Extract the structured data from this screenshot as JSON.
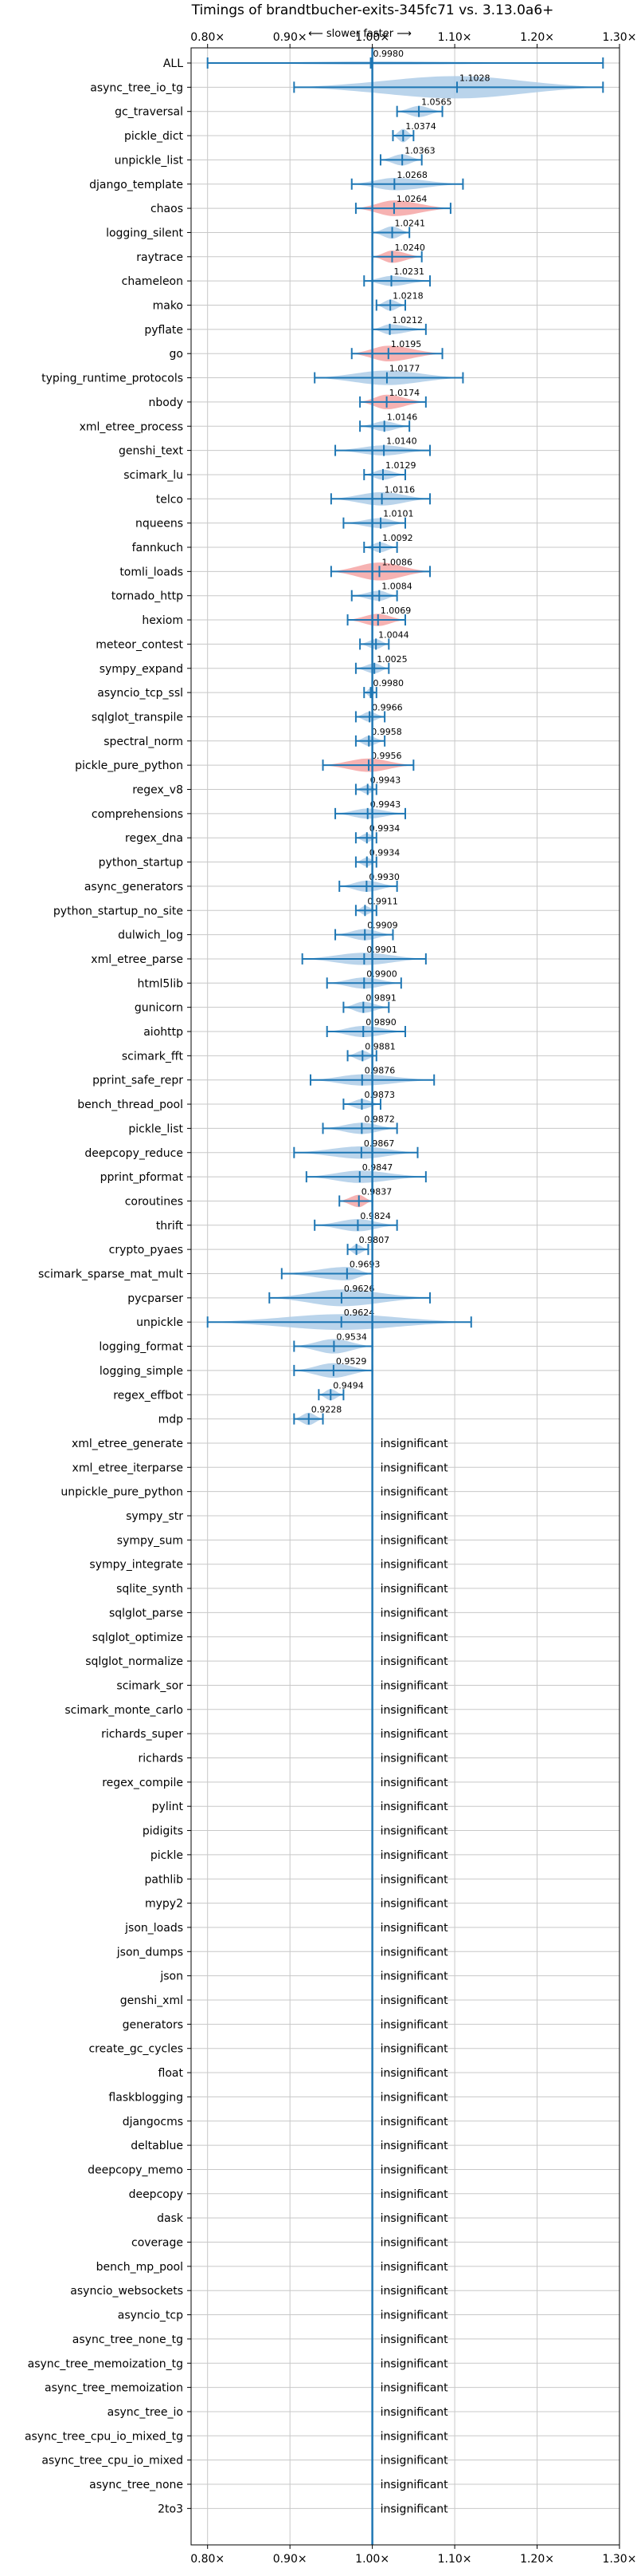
{
  "chart_data": {
    "type": "violin",
    "title": "Timings of brandtbucher-exits-345fc71 vs. 3.13.0a6+",
    "subtitle": "⟵ slower    faster ⟶",
    "xlim": [
      0.78,
      1.3
    ],
    "x_ticks": [
      0.8,
      0.9,
      1.0,
      1.1,
      1.2,
      1.3
    ],
    "x_tick_labels": [
      "0.80×",
      "0.90×",
      "1.00×",
      "1.10×",
      "1.20×",
      "1.30×"
    ],
    "reference_line": 1.0,
    "grid": true,
    "colors": {
      "faster": "#aecde8",
      "slower": "#f4a4a4",
      "line": "#1f77b4"
    },
    "insignificant_label": "insignificant",
    "benchmarks": [
      {
        "name": "ALL",
        "value": 0.998,
        "label": "0.9980",
        "min": 0.8,
        "max": 1.28,
        "slower": false,
        "width": 0.15
      },
      {
        "name": "async_tree_io_tg",
        "value": 1.1028,
        "label": "1.1028",
        "min": 0.905,
        "max": 1.28,
        "slower": false,
        "width": 1.0
      },
      {
        "name": "gc_traversal",
        "value": 1.0565,
        "label": "1.0565",
        "min": 1.03,
        "max": 1.085,
        "slower": false,
        "width": 0.5
      },
      {
        "name": "pickle_dict",
        "value": 1.0374,
        "label": "1.0374",
        "min": 1.025,
        "max": 1.05,
        "slower": false,
        "width": 0.6
      },
      {
        "name": "unpickle_list",
        "value": 1.0363,
        "label": "1.0363",
        "min": 1.01,
        "max": 1.06,
        "slower": false,
        "width": 0.5
      },
      {
        "name": "django_template",
        "value": 1.0268,
        "label": "1.0268",
        "min": 0.975,
        "max": 1.11,
        "slower": false,
        "width": 0.55
      },
      {
        "name": "chaos",
        "value": 1.0264,
        "label": "1.0264",
        "min": 0.98,
        "max": 1.095,
        "slower": true,
        "width": 0.7
      },
      {
        "name": "logging_silent",
        "value": 1.0241,
        "label": "1.0241",
        "min": 1.0,
        "max": 1.045,
        "slower": false,
        "width": 0.55
      },
      {
        "name": "raytrace",
        "value": 1.024,
        "label": "1.0240",
        "min": 1.0,
        "max": 1.06,
        "slower": true,
        "width": 0.55
      },
      {
        "name": "chameleon",
        "value": 1.0231,
        "label": "1.0231",
        "min": 0.99,
        "max": 1.07,
        "slower": false,
        "width": 0.45
      },
      {
        "name": "mako",
        "value": 1.0218,
        "label": "1.0218",
        "min": 1.005,
        "max": 1.04,
        "slower": false,
        "width": 0.5
      },
      {
        "name": "pyflate",
        "value": 1.0212,
        "label": "1.0212",
        "min": 1.0,
        "max": 1.065,
        "slower": false,
        "width": 0.45
      },
      {
        "name": "go",
        "value": 1.0195,
        "label": "1.0195",
        "min": 0.975,
        "max": 1.085,
        "slower": true,
        "width": 0.7
      },
      {
        "name": "typing_runtime_protocols",
        "value": 1.0177,
        "label": "1.0177",
        "min": 0.93,
        "max": 1.11,
        "slower": false,
        "width": 0.65
      },
      {
        "name": "nbody",
        "value": 1.0174,
        "label": "1.0174",
        "min": 0.985,
        "max": 1.065,
        "slower": true,
        "width": 0.65
      },
      {
        "name": "xml_etree_process",
        "value": 1.0146,
        "label": "1.0146",
        "min": 0.985,
        "max": 1.045,
        "slower": false,
        "width": 0.45
      },
      {
        "name": "genshi_text",
        "value": 1.014,
        "label": "1.0140",
        "min": 0.955,
        "max": 1.07,
        "slower": false,
        "width": 0.45
      },
      {
        "name": "scimark_lu",
        "value": 1.0129,
        "label": "1.0129",
        "min": 0.99,
        "max": 1.04,
        "slower": false,
        "width": 0.45
      },
      {
        "name": "telco",
        "value": 1.0116,
        "label": "1.0116",
        "min": 0.95,
        "max": 1.07,
        "slower": false,
        "width": 0.6
      },
      {
        "name": "nqueens",
        "value": 1.0101,
        "label": "1.0101",
        "min": 0.965,
        "max": 1.04,
        "slower": false,
        "width": 0.45
      },
      {
        "name": "fannkuch",
        "value": 1.0092,
        "label": "1.0092",
        "min": 0.99,
        "max": 1.03,
        "slower": false,
        "width": 0.45
      },
      {
        "name": "tomli_loads",
        "value": 1.0086,
        "label": "1.0086",
        "min": 0.95,
        "max": 1.07,
        "slower": true,
        "width": 0.8
      },
      {
        "name": "tornado_http",
        "value": 1.0084,
        "label": "1.0084",
        "min": 0.975,
        "max": 1.03,
        "slower": false,
        "width": 0.45
      },
      {
        "name": "hexiom",
        "value": 1.0069,
        "label": "1.0069",
        "min": 0.97,
        "max": 1.04,
        "slower": true,
        "width": 0.55
      },
      {
        "name": "meteor_contest",
        "value": 1.0044,
        "label": "1.0044",
        "min": 0.985,
        "max": 1.02,
        "slower": false,
        "width": 0.45
      },
      {
        "name": "sympy_expand",
        "value": 1.0025,
        "label": "1.0025",
        "min": 0.98,
        "max": 1.02,
        "slower": false,
        "width": 0.45
      },
      {
        "name": "asyncio_tcp_ssl",
        "value": 0.998,
        "label": "0.9980",
        "min": 0.99,
        "max": 1.005,
        "slower": false,
        "width": 0.4
      },
      {
        "name": "sqlglot_transpile",
        "value": 0.9966,
        "label": "0.9966",
        "min": 0.98,
        "max": 1.015,
        "slower": false,
        "width": 0.45
      },
      {
        "name": "spectral_norm",
        "value": 0.9958,
        "label": "0.9958",
        "min": 0.98,
        "max": 1.015,
        "slower": false,
        "width": 0.45
      },
      {
        "name": "pickle_pure_python",
        "value": 0.9956,
        "label": "0.9956",
        "min": 0.94,
        "max": 1.05,
        "slower": true,
        "width": 0.6
      },
      {
        "name": "regex_v8",
        "value": 0.9943,
        "label": "0.9943",
        "min": 0.98,
        "max": 1.005,
        "slower": false,
        "width": 0.4
      },
      {
        "name": "comprehensions",
        "value": 0.9943,
        "label": "0.9943",
        "min": 0.955,
        "max": 1.04,
        "slower": false,
        "width": 0.45
      },
      {
        "name": "regex_dna",
        "value": 0.9934,
        "label": "0.9934",
        "min": 0.98,
        "max": 1.005,
        "slower": false,
        "width": 0.4
      },
      {
        "name": "python_startup",
        "value": 0.9934,
        "label": "0.9934",
        "min": 0.98,
        "max": 1.005,
        "slower": false,
        "width": 0.4
      },
      {
        "name": "async_generators",
        "value": 0.993,
        "label": "0.9930",
        "min": 0.96,
        "max": 1.03,
        "slower": false,
        "width": 0.5
      },
      {
        "name": "python_startup_no_site",
        "value": 0.9911,
        "label": "0.9911",
        "min": 0.98,
        "max": 1.005,
        "slower": false,
        "width": 0.4
      },
      {
        "name": "dulwich_log",
        "value": 0.9909,
        "label": "0.9909",
        "min": 0.955,
        "max": 1.025,
        "slower": false,
        "width": 0.5
      },
      {
        "name": "xml_etree_parse",
        "value": 0.9901,
        "label": "0.9901",
        "min": 0.915,
        "max": 1.065,
        "slower": false,
        "width": 0.55
      },
      {
        "name": "html5lib",
        "value": 0.99,
        "label": "0.9900",
        "min": 0.945,
        "max": 1.035,
        "slower": false,
        "width": 0.5
      },
      {
        "name": "gunicorn",
        "value": 0.9891,
        "label": "0.9891",
        "min": 0.965,
        "max": 1.02,
        "slower": false,
        "width": 0.5
      },
      {
        "name": "aiohttp",
        "value": 0.989,
        "label": "0.9890",
        "min": 0.945,
        "max": 1.04,
        "slower": false,
        "width": 0.5
      },
      {
        "name": "scimark_fft",
        "value": 0.9881,
        "label": "0.9881",
        "min": 0.97,
        "max": 1.005,
        "slower": false,
        "width": 0.45
      },
      {
        "name": "pprint_safe_repr",
        "value": 0.9876,
        "label": "0.9876",
        "min": 0.925,
        "max": 1.075,
        "slower": false,
        "width": 0.5
      },
      {
        "name": "bench_thread_pool",
        "value": 0.9873,
        "label": "0.9873",
        "min": 0.965,
        "max": 1.01,
        "slower": false,
        "width": 0.45
      },
      {
        "name": "pickle_list",
        "value": 0.9872,
        "label": "0.9872",
        "min": 0.94,
        "max": 1.03,
        "slower": false,
        "width": 0.5
      },
      {
        "name": "deepcopy_reduce",
        "value": 0.9867,
        "label": "0.9867",
        "min": 0.905,
        "max": 1.055,
        "slower": false,
        "width": 0.55
      },
      {
        "name": "pprint_pformat",
        "value": 0.9847,
        "label": "0.9847",
        "min": 0.92,
        "max": 1.065,
        "slower": false,
        "width": 0.55
      },
      {
        "name": "coroutines",
        "value": 0.9837,
        "label": "0.9837",
        "min": 0.96,
        "max": 1.0,
        "slower": true,
        "width": 0.55
      },
      {
        "name": "thrift",
        "value": 0.9824,
        "label": "0.9824",
        "min": 0.93,
        "max": 1.03,
        "slower": false,
        "width": 0.55
      },
      {
        "name": "crypto_pyaes",
        "value": 0.9807,
        "label": "0.9807",
        "min": 0.97,
        "max": 0.995,
        "slower": false,
        "width": 0.45
      },
      {
        "name": "scimark_sparse_mat_mult",
        "value": 0.9693,
        "label": "0.9693",
        "min": 0.89,
        "max": 1.0,
        "slower": false,
        "width": 0.6
      },
      {
        "name": "pycparser",
        "value": 0.9626,
        "label": "0.9626",
        "min": 0.875,
        "max": 1.07,
        "slower": false,
        "width": 0.75
      },
      {
        "name": "unpickle",
        "value": 0.9624,
        "label": "0.9624",
        "min": 0.8,
        "max": 1.12,
        "slower": false,
        "width": 0.7
      },
      {
        "name": "logging_format",
        "value": 0.9534,
        "label": "0.9534",
        "min": 0.905,
        "max": 1.0,
        "slower": false,
        "width": 0.65
      },
      {
        "name": "logging_simple",
        "value": 0.9529,
        "label": "0.9529",
        "min": 0.905,
        "max": 1.0,
        "slower": false,
        "width": 0.65
      },
      {
        "name": "regex_effbot",
        "value": 0.9494,
        "label": "0.9494",
        "min": 0.935,
        "max": 0.965,
        "slower": false,
        "width": 0.5
      },
      {
        "name": "mdp",
        "value": 0.9228,
        "label": "0.9228",
        "min": 0.905,
        "max": 0.94,
        "slower": false,
        "width": 0.55
      },
      {
        "name": "xml_etree_generate",
        "insignificant": true
      },
      {
        "name": "xml_etree_iterparse",
        "insignificant": true
      },
      {
        "name": "unpickle_pure_python",
        "insignificant": true
      },
      {
        "name": "sympy_str",
        "insignificant": true
      },
      {
        "name": "sympy_sum",
        "insignificant": true
      },
      {
        "name": "sympy_integrate",
        "insignificant": true
      },
      {
        "name": "sqlite_synth",
        "insignificant": true
      },
      {
        "name": "sqlglot_parse",
        "insignificant": true
      },
      {
        "name": "sqlglot_optimize",
        "insignificant": true
      },
      {
        "name": "sqlglot_normalize",
        "insignificant": true
      },
      {
        "name": "scimark_sor",
        "insignificant": true
      },
      {
        "name": "scimark_monte_carlo",
        "insignificant": true
      },
      {
        "name": "richards_super",
        "insignificant": true
      },
      {
        "name": "richards",
        "insignificant": true
      },
      {
        "name": "regex_compile",
        "insignificant": true
      },
      {
        "name": "pylint",
        "insignificant": true
      },
      {
        "name": "pidigits",
        "insignificant": true
      },
      {
        "name": "pickle",
        "insignificant": true
      },
      {
        "name": "pathlib",
        "insignificant": true
      },
      {
        "name": "mypy2",
        "insignificant": true
      },
      {
        "name": "json_loads",
        "insignificant": true
      },
      {
        "name": "json_dumps",
        "insignificant": true
      },
      {
        "name": "json",
        "insignificant": true
      },
      {
        "name": "genshi_xml",
        "insignificant": true
      },
      {
        "name": "generators",
        "insignificant": true
      },
      {
        "name": "create_gc_cycles",
        "insignificant": true
      },
      {
        "name": "float",
        "insignificant": true
      },
      {
        "name": "flaskblogging",
        "insignificant": true
      },
      {
        "name": "djangocms",
        "insignificant": true
      },
      {
        "name": "deltablue",
        "insignificant": true
      },
      {
        "name": "deepcopy_memo",
        "insignificant": true
      },
      {
        "name": "deepcopy",
        "insignificant": true
      },
      {
        "name": "dask",
        "insignificant": true
      },
      {
        "name": "coverage",
        "insignificant": true
      },
      {
        "name": "bench_mp_pool",
        "insignificant": true
      },
      {
        "name": "asyncio_websockets",
        "insignificant": true
      },
      {
        "name": "asyncio_tcp",
        "insignificant": true
      },
      {
        "name": "async_tree_none_tg",
        "insignificant": true
      },
      {
        "name": "async_tree_memoization_tg",
        "insignificant": true
      },
      {
        "name": "async_tree_memoization",
        "insignificant": true
      },
      {
        "name": "async_tree_io",
        "insignificant": true
      },
      {
        "name": "async_tree_cpu_io_mixed_tg",
        "insignificant": true
      },
      {
        "name": "async_tree_cpu_io_mixed",
        "insignificant": true
      },
      {
        "name": "async_tree_none",
        "insignificant": true
      },
      {
        "name": "2to3",
        "insignificant": true
      }
    ]
  }
}
